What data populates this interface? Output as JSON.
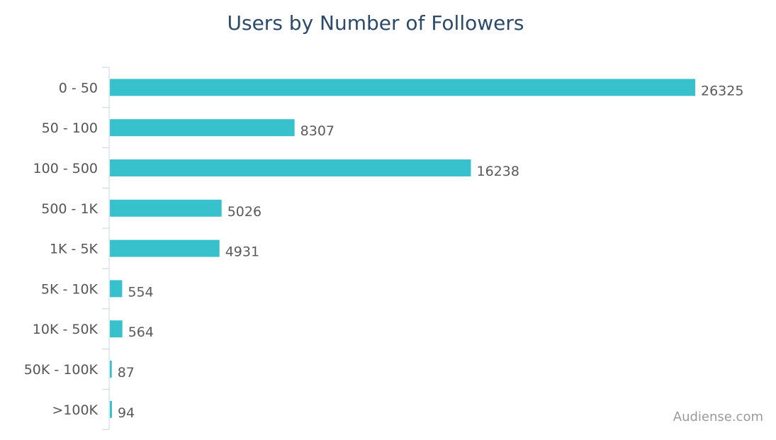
{
  "colors": {
    "bar": "#37c1cd",
    "axis": "#c9d4dd",
    "title": "#2b4a6b"
  },
  "watermark": "Audiense.com",
  "chart_data": {
    "type": "bar",
    "orientation": "horizontal",
    "title": "Users by Number of Followers",
    "xlabel": "",
    "ylabel": "",
    "categories": [
      "0 - 50",
      "50 - 100",
      "100 - 500",
      "500 - 1K",
      "1K - 5K",
      "5K - 10K",
      "10K - 50K",
      "50K - 100K",
      ">100K"
    ],
    "values": [
      26325,
      8307,
      16238,
      5026,
      4931,
      554,
      564,
      87,
      94
    ],
    "value_labels": [
      "26325",
      "8307",
      "16238",
      "5026",
      "4931",
      "554",
      "564",
      "87",
      "94"
    ],
    "xlim": [
      0,
      26325
    ],
    "grid": false,
    "legend": "none"
  }
}
